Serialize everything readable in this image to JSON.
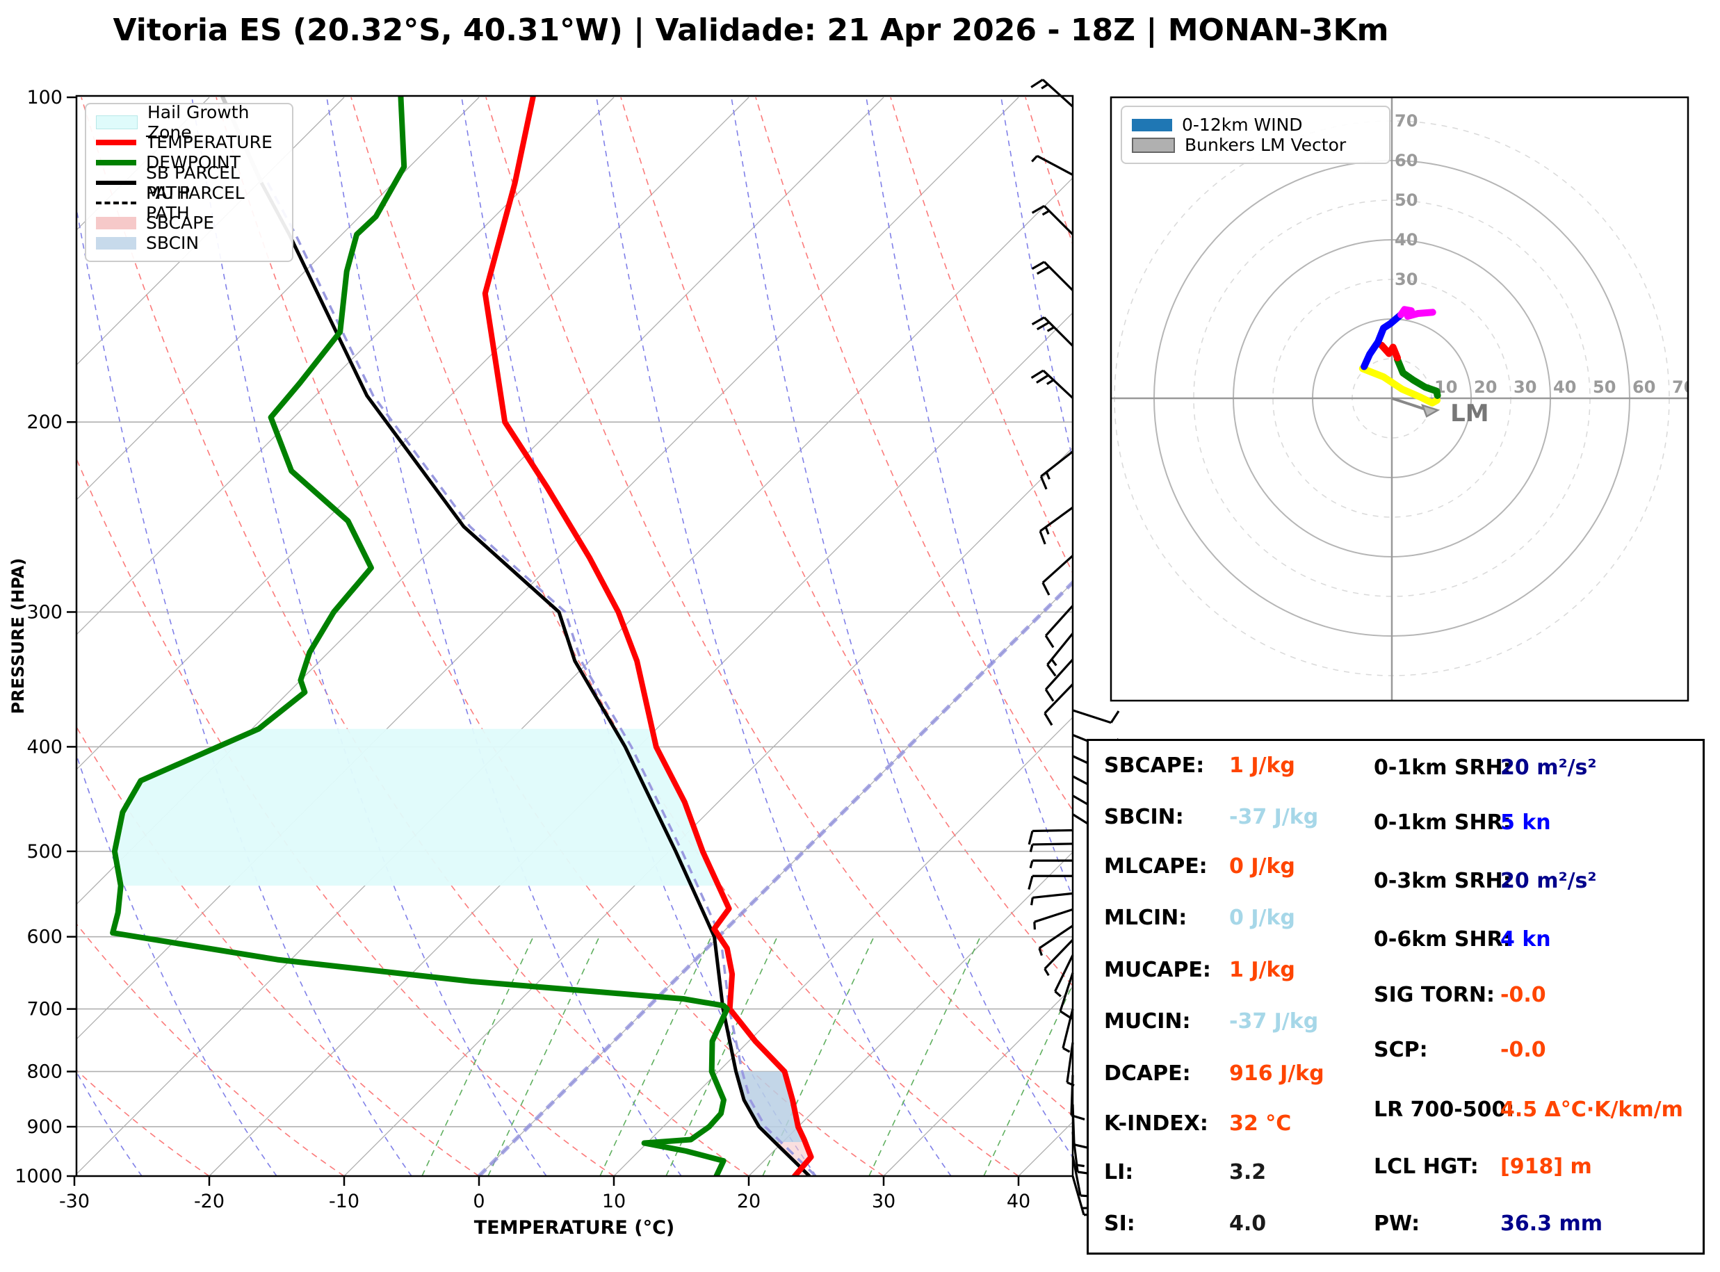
{
  "title": "Vitoria ES (20.32°S, 40.31°W) | Validade: 21 Apr 2026 - 18Z | MONAN-3Km",
  "skewt": {
    "xlabel": "TEMPERATURE (°C)",
    "ylabel": "PRESSURE (HPA)",
    "pressure_ticks": [
      100,
      200,
      300,
      400,
      500,
      600,
      700,
      800,
      900,
      1000
    ],
    "temp_ticks": [
      -30,
      -20,
      -10,
      0,
      10,
      20,
      30,
      40
    ],
    "legend": [
      {
        "label": "Hail Growth Zone",
        "type": "patch-hail"
      },
      {
        "label": "TEMPERATURE",
        "type": "line-temp"
      },
      {
        "label": "DEWPOINT",
        "type": "line-dew"
      },
      {
        "label": "SB PARCEL PATH",
        "type": "line-sb"
      },
      {
        "label": "MU PARCEL PATH",
        "type": "line-mu"
      },
      {
        "label": "SBCAPE",
        "type": "patch-sbcape"
      },
      {
        "label": "SBCIN",
        "type": "patch-sbcin"
      }
    ]
  },
  "hodograph": {
    "legend": [
      {
        "label": "0-12km WIND",
        "type": "patch-wind"
      },
      {
        "label": "Bunkers LM Vector",
        "type": "patch-bunkers"
      }
    ],
    "radial_labels_up": [
      "30",
      "40",
      "50",
      "60",
      "70"
    ],
    "radial_labels_right": [
      "10",
      "20",
      "30",
      "40",
      "50",
      "60",
      "70"
    ],
    "lm_label": "LM"
  },
  "indices": {
    "left": [
      {
        "label": "SBCAPE:",
        "value": "1 J/kg",
        "color": "orange"
      },
      {
        "label": "SBCIN:",
        "value": "-37 J/kg",
        "color": "lightblue"
      },
      {
        "label": "MLCAPE:",
        "value": "0 J/kg",
        "color": "orange"
      },
      {
        "label": "MLCIN:",
        "value": "0 J/kg",
        "color": "lightblue"
      },
      {
        "label": "MUCAPE:",
        "value": "1 J/kg",
        "color": "orange"
      },
      {
        "label": "MUCIN:",
        "value": "-37 J/kg",
        "color": "lightblue"
      },
      {
        "label": "DCAPE:",
        "value": "916 J/kg",
        "color": "orange"
      },
      {
        "label": "K-INDEX:",
        "value": "32 °C",
        "color": "orange"
      },
      {
        "label": "LI:",
        "value": "3.2",
        "color": "black"
      },
      {
        "label": "SI:",
        "value": "4.0",
        "color": "black"
      }
    ],
    "right": [
      {
        "label": "0-1km SRH:",
        "value": "20 m²/s²",
        "color": "navy"
      },
      {
        "label": "0-1km SHR:",
        "value": "5 kn",
        "color": "blue"
      },
      {
        "label": "0-3km SRH:",
        "value": "20 m²/s²",
        "color": "navy"
      },
      {
        "label": "0-6km SHR:",
        "value": "4 kn",
        "color": "blue"
      },
      {
        "label": "SIG TORN:",
        "value": "-0.0",
        "color": "orange"
      },
      {
        "label": "SCP:",
        "value": "-0.0",
        "color": "orange"
      },
      {
        "label": "LR 700-500:",
        "value": "4.5 Δ°C·K/km/m",
        "color": "orange"
      },
      {
        "label": "LCL HGT:",
        "value": "[918] m",
        "color": "orange"
      },
      {
        "label": "PW:",
        "value": "36.3 mm",
        "color": "navy"
      }
    ]
  },
  "colors": {
    "temperature": "#ff0000",
    "dewpoint": "#008000",
    "sb_parcel": "#000000",
    "mu_parcel": "#9a9ae0",
    "upper_parcel_gray": "#c9c9c9",
    "hail_zone": "#dffbfb",
    "cin_fill": "#b9cfe4",
    "cape_fill": "#f6c9c9",
    "isotherm": "#adadad",
    "zero_isotherm": "#8d8dde",
    "dry_adiabat": "#fb7b7b",
    "moist_adiabat": "#8080e8",
    "mixing_ratio": "#5faf5f",
    "pressure_line": "#b0b0b0",
    "hodo_ring": "#b5b5b5",
    "hodo_layers": [
      "#ffff00",
      "#008000",
      "#ff0000",
      "#0000ff",
      "#ff00ff"
    ],
    "lm_vector": "#888888"
  },
  "chart_data": {
    "type": "skewt-sounding",
    "pressure_range_hpa": [
      100,
      1000
    ],
    "temp_axis_range_c": [
      -30,
      40
    ],
    "temperature_profile_p_t": [
      [
        100,
        -76
      ],
      [
        120,
        -71
      ],
      [
        152,
        -65
      ],
      [
        181,
        -58
      ],
      [
        200,
        -54
      ],
      [
        230,
        -46
      ],
      [
        267,
        -37.7
      ],
      [
        300,
        -31.5
      ],
      [
        333,
        -26.5
      ],
      [
        400,
        -18.7
      ],
      [
        450,
        -12.5
      ],
      [
        500,
        -7.5
      ],
      [
        565,
        -1.3
      ],
      [
        590,
        -0.9
      ],
      [
        615,
        1.5
      ],
      [
        650,
        3.8
      ],
      [
        700,
        6.2
      ],
      [
        750,
        10.5
      ],
      [
        800,
        14.9
      ],
      [
        850,
        17.6
      ],
      [
        900,
        20.0
      ],
      [
        925,
        21.4
      ],
      [
        960,
        23.2
      ],
      [
        1000,
        23.4
      ]
    ],
    "dewpoint_profile_p_t": [
      [
        100,
        -85.8
      ],
      [
        116,
        -80.4
      ],
      [
        129,
        -78.8
      ],
      [
        134,
        -78.9
      ],
      [
        145,
        -76.9
      ],
      [
        165,
        -72.9
      ],
      [
        184,
        -72.1
      ],
      [
        198,
        -71.7
      ],
      [
        222,
        -66.2
      ],
      [
        247,
        -58.3
      ],
      [
        273,
        -53.1
      ],
      [
        300,
        -52.6
      ],
      [
        327,
        -51.4
      ],
      [
        347,
        -50.0
      ],
      [
        356,
        -48.8
      ],
      [
        385,
        -49.5
      ],
      [
        430,
        -54.4
      ],
      [
        460,
        -53.4
      ],
      [
        500,
        -51.1
      ],
      [
        538,
        -48.1
      ],
      [
        570,
        -46.3
      ],
      [
        595,
        -45.2
      ],
      [
        630,
        -31
      ],
      [
        660,
        -15
      ],
      [
        685,
        2
      ],
      [
        695,
        5.5
      ],
      [
        700,
        6.0
      ],
      [
        750,
        7.3
      ],
      [
        800,
        9.5
      ],
      [
        850,
        12.5
      ],
      [
        875,
        13.3
      ],
      [
        900,
        13.4
      ],
      [
        925,
        13.0
      ],
      [
        932,
        9.8
      ],
      [
        948,
        13.5
      ],
      [
        968,
        17.0
      ],
      [
        1000,
        17.6
      ]
    ],
    "sb_parcel_path_p_t": [
      [
        120,
        -89.8
      ],
      [
        134,
        -83.9
      ],
      [
        189,
        -66.2
      ],
      [
        250,
        -49.3
      ],
      [
        300,
        -35.9
      ],
      [
        333,
        -31.1
      ],
      [
        400,
        -21.0
      ],
      [
        500,
        -9.5
      ],
      [
        600,
        -0.3
      ],
      [
        700,
        5.7
      ],
      [
        800,
        11.3
      ],
      [
        850,
        14.0
      ],
      [
        900,
        17.1
      ],
      [
        930,
        19.4
      ],
      [
        1000,
        24.5
      ]
    ],
    "mu_parcel_path_p_t": "same as sb_parcel_path",
    "upper_parcel_gray_p_t": [
      [
        100,
        -99
      ],
      [
        120,
        -89.8
      ]
    ],
    "hail_growth_zone_p": [
      385,
      538
    ],
    "cin_fill_p": [
      800,
      930
    ],
    "cape_fill_p": [
      930,
      1000
    ],
    "freezing_isotherm_c": 0,
    "wind_barbs_p_angle_full_half": [
      [
        102,
        138,
        1,
        1
      ],
      [
        118,
        152,
        0,
        1
      ],
      [
        134,
        135,
        1,
        1
      ],
      [
        151,
        135,
        2,
        0
      ],
      [
        170,
        135,
        2,
        1
      ],
      [
        190,
        137,
        2,
        1
      ],
      [
        213,
        218,
        1,
        1
      ],
      [
        240,
        216,
        1,
        1
      ],
      [
        266,
        222,
        1,
        0
      ],
      [
        296,
        228,
        1,
        0
      ],
      [
        314,
        231,
        1,
        1
      ],
      [
        332,
        228,
        1,
        0
      ],
      [
        350,
        226,
        1,
        0
      ],
      [
        370,
        342,
        1,
        0
      ],
      [
        390,
        338,
        1,
        0
      ],
      [
        408,
        335,
        0,
        1
      ],
      [
        426,
        332,
        0,
        1
      ],
      [
        444,
        330,
        0,
        1
      ],
      [
        462,
        328,
        0,
        1
      ],
      [
        478,
        181,
        1,
        0
      ],
      [
        492,
        181,
        0,
        1
      ],
      [
        510,
        180,
        0,
        1
      ],
      [
        527,
        180,
        1,
        0
      ],
      [
        547,
        186,
        0,
        1
      ],
      [
        566,
        198,
        0,
        1
      ],
      [
        586,
        214,
        0,
        1
      ],
      [
        604,
        226,
        0,
        1
      ],
      [
        624,
        244,
        0,
        1
      ],
      [
        648,
        252,
        1,
        0
      ],
      [
        700,
        256,
        0,
        1
      ],
      [
        752,
        262,
        0,
        1
      ],
      [
        806,
        268,
        1,
        0
      ],
      [
        858,
        272,
        1,
        0
      ],
      [
        910,
        277,
        1,
        1
      ],
      [
        958,
        281,
        1,
        0
      ],
      [
        1000,
        286,
        1,
        1
      ]
    ],
    "hodograph_layers_u_v_kt": [
      {
        "name": "layer-1",
        "color": "#ffff00",
        "points": [
          [
            -7.4,
            7.5
          ],
          [
            -2.1,
            5.4
          ],
          [
            2.6,
            2.3
          ],
          [
            7.2,
            0.3
          ],
          [
            10.2,
            -1.2
          ],
          [
            11.4,
            -0.5
          ]
        ]
      },
      {
        "name": "layer-2",
        "color": "#008000",
        "points": [
          [
            11.5,
            0.7
          ],
          [
            11.3,
            1.8
          ],
          [
            8.4,
            2.8
          ],
          [
            5.4,
            4.6
          ],
          [
            2.8,
            6.4
          ],
          [
            1.4,
            9.8
          ]
        ]
      },
      {
        "name": "layer-3",
        "color": "#ff0000",
        "points": [
          [
            1.4,
            10.2
          ],
          [
            0.3,
            12.9
          ],
          [
            -0.7,
            11.3
          ],
          [
            -2.6,
            13.4
          ]
        ]
      },
      {
        "name": "layer-4",
        "color": "#0000ff",
        "points": [
          [
            -7.0,
            8.0
          ],
          [
            -5.6,
            11.1
          ],
          [
            -3.5,
            14.2
          ],
          [
            -2.1,
            17.7
          ],
          [
            -0.3,
            18.9
          ],
          [
            2.3,
            21.1
          ]
        ]
      },
      {
        "name": "layer-5",
        "color": "#ff00ff",
        "points": [
          [
            2.3,
            21.1
          ],
          [
            3.2,
            22.4
          ],
          [
            4.9,
            22.1
          ],
          [
            4.0,
            20.7
          ],
          [
            6.6,
            21.4
          ],
          [
            10.3,
            21.7
          ]
        ]
      }
    ],
    "bunkers_lm_vector_u_v_kt": [
      11.6,
      -3.0
    ],
    "hodograph_ring_step_kt": 10,
    "hodograph_max_ring_kt": 70
  }
}
